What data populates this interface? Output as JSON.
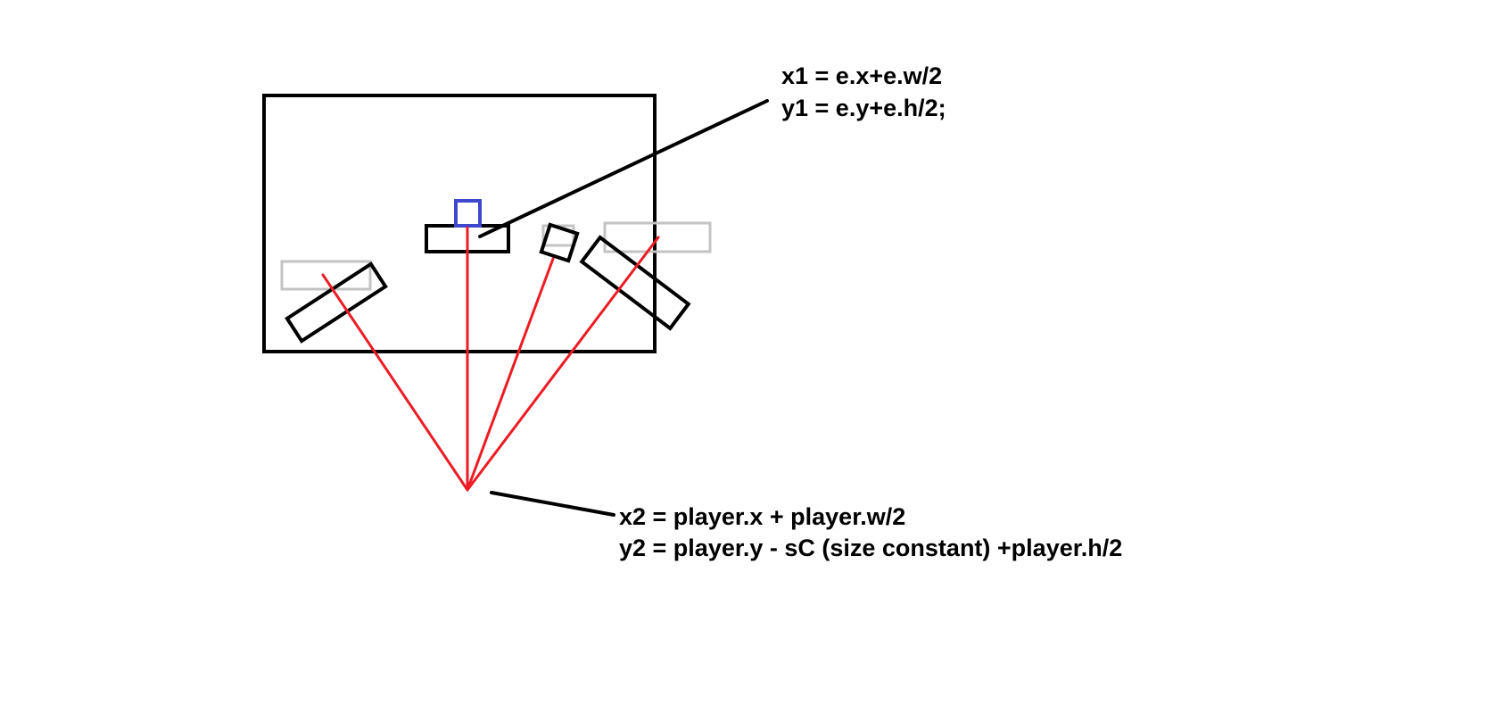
{
  "annotations": {
    "entity_center": {
      "line1": "x1 = e.x+e.w/2",
      "line2": "y1 = e.y+e.h/2;"
    },
    "player_origin": {
      "line1": "x2 = player.x + player.w/2",
      "line2": "y2 = player.y - sC (size constant) +player.h/2"
    }
  },
  "colors": {
    "outline": "#000000",
    "ray": "#ed1c24",
    "ghost": "#c3c3c3",
    "entity_marker": "#3f48cc",
    "background": "#ffffff"
  }
}
